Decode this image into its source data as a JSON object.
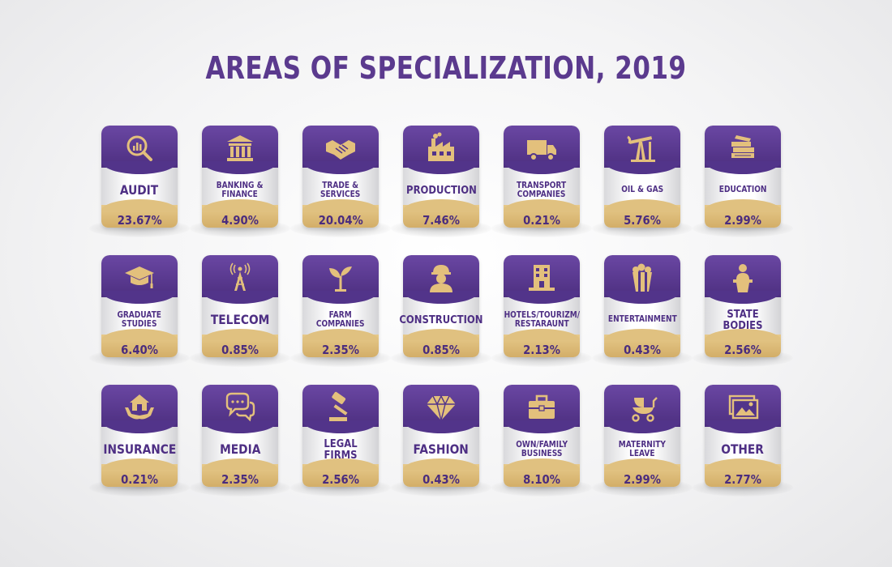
{
  "title": "AREAS OF SPECIALIZATION, 2019",
  "colors": {
    "title": "#5b3a8e",
    "card_top": "#52348a",
    "icon": "#e3c07c",
    "label": "#4e2f84",
    "band": "#dcba78"
  },
  "cards": [
    {
      "icon": "magnifier-chart-icon",
      "label": "AUDIT",
      "value": "23.67%",
      "size": "big"
    },
    {
      "icon": "bank-building-icon",
      "label": "BANKING &\nFINANCE",
      "value": "4.90%",
      "size": "small"
    },
    {
      "icon": "handshake-icon",
      "label": "TRADE &\nSERVICES",
      "value": "20.04%",
      "size": "small"
    },
    {
      "icon": "factory-icon",
      "label": "PRODUCTION",
      "value": "7.46%",
      "size": "mid"
    },
    {
      "icon": "truck-icon",
      "label": "TRANSPORT\nCOMPANIES",
      "value": "0.21%",
      "size": "small"
    },
    {
      "icon": "oil-pump-icon",
      "label": "OIL & GAS",
      "value": "5.76%",
      "size": "small"
    },
    {
      "icon": "books-icon",
      "label": "EDUCATION",
      "value": "2.99%",
      "size": "small"
    },
    {
      "icon": "graduation-cap-icon",
      "label": "GRADUATE\nSTUDIES",
      "value": "6.40%",
      "size": "small"
    },
    {
      "icon": "antenna-tower-icon",
      "label": "TELECOM",
      "value": "0.85%",
      "size": "big"
    },
    {
      "icon": "sprout-icon",
      "label": "FARM\nCOMPANIES",
      "value": "2.35%",
      "size": "small"
    },
    {
      "icon": "worker-helmet-icon",
      "label": "CONSTRUCTION",
      "value": "0.85%",
      "size": "mid"
    },
    {
      "icon": "hotel-building-icon",
      "label": "HOTELS/TOURIZM/\nRESTARAUNT",
      "value": "2.13%",
      "size": "small"
    },
    {
      "icon": "popcorn-icon",
      "label": "ENTERTAINMENT",
      "value": "0.43%",
      "size": "small"
    },
    {
      "icon": "speaker-podium-icon",
      "label": "STATE BODIES",
      "value": "2.56%",
      "size": "mid"
    },
    {
      "icon": "house-hands-icon",
      "label": "INSURANCE",
      "value": "0.21%",
      "size": "big"
    },
    {
      "icon": "chat-bubbles-icon",
      "label": "MEDIA",
      "value": "2.35%",
      "size": "big"
    },
    {
      "icon": "gavel-icon",
      "label": "LEGAL FIRMS",
      "value": "2.56%",
      "size": "mid"
    },
    {
      "icon": "diamond-icon",
      "label": "FASHION",
      "value": "0.43%",
      "size": "big"
    },
    {
      "icon": "briefcase-icon",
      "label": "OWN/FAMILY\nBUSINESS",
      "value": "8.10%",
      "size": "small"
    },
    {
      "icon": "stroller-icon",
      "label": "MATERNITY\nLEAVE",
      "value": "2.99%",
      "size": "small"
    },
    {
      "icon": "images-icon",
      "label": "OTHER",
      "value": "2.77%",
      "size": "big"
    }
  ]
}
